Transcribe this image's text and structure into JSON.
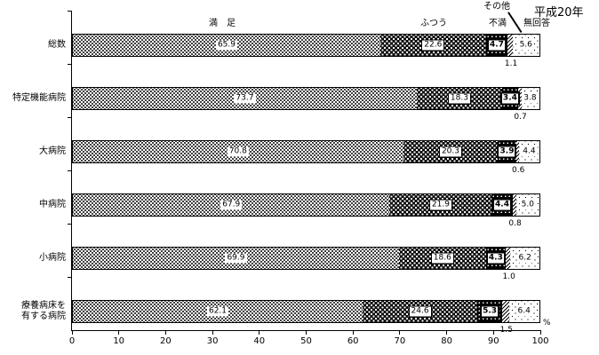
{
  "era_label": "平成20年",
  "legend": {
    "manzoku": "満　足",
    "futsuu": "ふつう",
    "fuman": "不満",
    "sonota": "その他",
    "mukaitou": "無回答"
  },
  "axis": {
    "unit": "%",
    "ticks": [
      0,
      10,
      20,
      30,
      40,
      50,
      60,
      70,
      80,
      90,
      100
    ]
  },
  "chart_data": {
    "type": "bar",
    "stacked": true,
    "orientation": "horizontal",
    "title": "",
    "xlabel": "%",
    "ylabel": "",
    "xlim": [
      0,
      100
    ],
    "grid": false,
    "legend_position": "top",
    "categories": [
      "総数",
      "特定機能病院",
      "大病院",
      "中病院",
      "小病院",
      "療養病床を有する病院"
    ],
    "categories_display": [
      [
        "総数"
      ],
      [
        "特定機能病院"
      ],
      [
        "大病院"
      ],
      [
        "中病院"
      ],
      [
        "小病院"
      ],
      [
        "療養病床を",
        "有する病院"
      ]
    ],
    "series": [
      {
        "key": "manzoku",
        "name": "満足",
        "values": [
          65.9,
          73.7,
          70.8,
          67.9,
          69.9,
          62.1
        ]
      },
      {
        "key": "futsuu",
        "name": "ふつう",
        "values": [
          22.6,
          18.3,
          20.3,
          21.9,
          18.6,
          24.6
        ]
      },
      {
        "key": "fuman",
        "name": "不満",
        "values": [
          4.7,
          3.4,
          3.9,
          4.4,
          4.3,
          5.3
        ]
      },
      {
        "key": "sonota",
        "name": "その他",
        "values": [
          1.1,
          0.7,
          0.6,
          0.8,
          1.0,
          1.5
        ]
      },
      {
        "key": "mukaitou",
        "name": "無回答",
        "values": [
          5.6,
          3.8,
          4.4,
          5.0,
          6.2,
          6.4
        ]
      }
    ]
  }
}
